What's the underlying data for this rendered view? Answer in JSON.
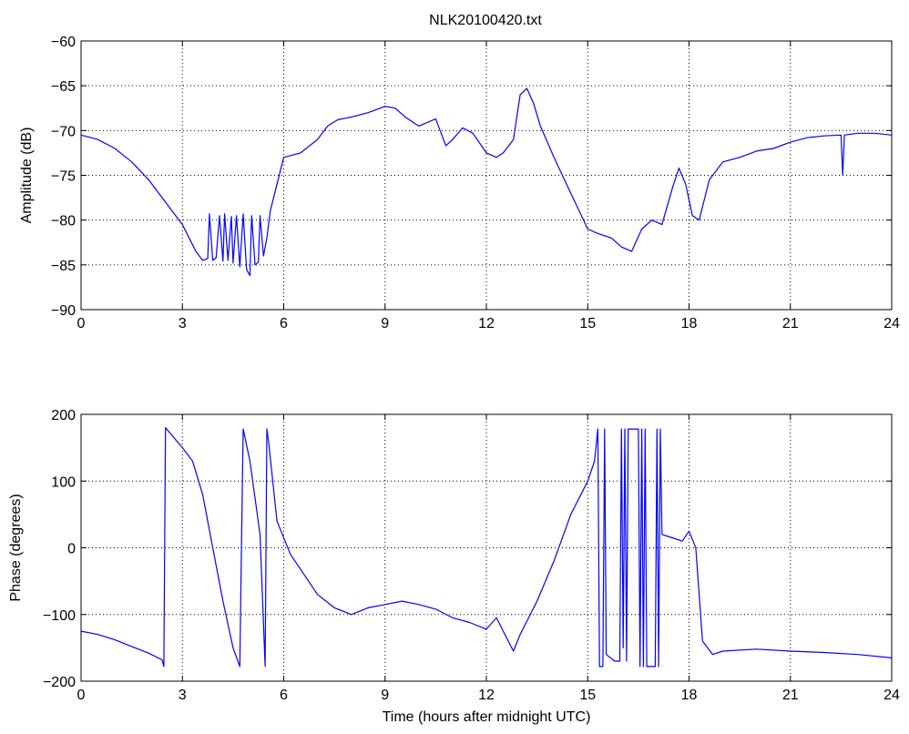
{
  "title": "NLK20100420.txt",
  "style": {
    "line_color": "#0000ff",
    "axis_color": "#000000",
    "grid_color": "#000000",
    "background": "#ffffff"
  },
  "chart_data": [
    {
      "type": "line",
      "title": "NLK20100420.txt",
      "xlabel": "",
      "ylabel": "Amplitude (dB)",
      "xlim": [
        0,
        24
      ],
      "ylim": [
        -90,
        -60
      ],
      "xticks": [
        0,
        3,
        6,
        9,
        12,
        15,
        18,
        21,
        24
      ],
      "yticks": [
        -90,
        -85,
        -80,
        -75,
        -70,
        -65,
        -60
      ],
      "grid": true,
      "series": [
        {
          "x": [
            0,
            0.5,
            1,
            1.5,
            2,
            2.5,
            3,
            3.2,
            3.4,
            3.6,
            3.75,
            3.8,
            3.9,
            4.0,
            4.1,
            4.2,
            4.25,
            4.35,
            4.45,
            4.5,
            4.6,
            4.7,
            4.8,
            4.9,
            5.0,
            5.05,
            5.15,
            5.25,
            5.3,
            5.4,
            5.5,
            5.6,
            5.8,
            6.0,
            6.5,
            7,
            7.3,
            7.6,
            8,
            8.5,
            9,
            9.3,
            9.6,
            10,
            10.5,
            10.8,
            11,
            11.3,
            11.6,
            12,
            12.3,
            12.5,
            12.8,
            13.0,
            13.2,
            13.4,
            13.6,
            14,
            14.5,
            15,
            15.3,
            15.7,
            16,
            16.3,
            16.6,
            16.9,
            17.2,
            17.5,
            17.7,
            17.9,
            18.1,
            18.3,
            18.6,
            19,
            19.5,
            20,
            20.5,
            21,
            21.5,
            22,
            22.5,
            22.55,
            22.6,
            23,
            23.5,
            24
          ],
          "y": [
            -70.5,
            -71,
            -72,
            -73.5,
            -75.5,
            -78,
            -80.5,
            -82,
            -83.5,
            -84.5,
            -84.3,
            -79.3,
            -84.5,
            -84.2,
            -79.5,
            -84.6,
            -79.3,
            -84.5,
            -79.6,
            -84.8,
            -79.5,
            -85.2,
            -79.3,
            -85.5,
            -86.2,
            -79.5,
            -85,
            -84.7,
            -79.5,
            -84,
            -82,
            -79,
            -76,
            -73,
            -72.5,
            -71,
            -69.5,
            -68.8,
            -68.5,
            -68,
            -67.3,
            -67.5,
            -68.5,
            -69.5,
            -68.7,
            -71.7,
            -71,
            -69.7,
            -70.3,
            -72.5,
            -73,
            -72.5,
            -71,
            -66,
            -65.3,
            -67,
            -69.5,
            -73,
            -77,
            -81,
            -81.5,
            -82,
            -83,
            -83.5,
            -81,
            -80,
            -80.5,
            -76.5,
            -74.2,
            -76,
            -79.5,
            -80,
            -75.5,
            -73.5,
            -73,
            -72.3,
            -72,
            -71.3,
            -70.8,
            -70.6,
            -70.5,
            -75,
            -70.5,
            -70.3,
            -70.3,
            -70.5
          ]
        }
      ]
    },
    {
      "type": "line",
      "title": "",
      "xlabel": "Time (hours after midnight UTC)",
      "ylabel": "Phase (degrees)",
      "xlim": [
        0,
        24
      ],
      "ylim": [
        -200,
        200
      ],
      "xticks": [
        0,
        3,
        6,
        9,
        12,
        15,
        18,
        21,
        24
      ],
      "yticks": [
        -200,
        -100,
        0,
        100,
        200
      ],
      "grid": true,
      "series": [
        {
          "x": [
            0,
            0.5,
            1,
            1.5,
            2,
            2.4,
            2.45,
            2.5,
            3,
            3.3,
            3.6,
            3.9,
            4.2,
            4.5,
            4.7,
            4.75,
            4.8,
            5.0,
            5.3,
            5.45,
            5.5,
            5.55,
            5.8,
            6.2,
            6.6,
            7,
            7.5,
            8,
            8.5,
            9,
            9.5,
            10,
            10.5,
            11,
            11.5,
            12,
            12.3,
            12.5,
            12.8,
            13,
            13.5,
            14,
            14.5,
            15,
            15.2,
            15.3,
            15.35,
            15.45,
            15.5,
            15.55,
            15.8,
            15.95,
            16.0,
            16.05,
            16.1,
            16.15,
            16.2,
            16.5,
            16.55,
            16.6,
            16.65,
            16.7,
            16.75,
            17.0,
            17.05,
            17.1,
            17.15,
            17.2,
            17.5,
            17.8,
            18.0,
            18.2,
            18.4,
            18.7,
            19,
            20,
            21,
            22,
            23,
            24
          ],
          "y": [
            -125,
            -130,
            -138,
            -148,
            -158,
            -168,
            -178,
            180,
            150,
            130,
            80,
            0,
            -80,
            -150,
            -178,
            0,
            178,
            130,
            20,
            -178,
            178,
            160,
            40,
            -10,
            -40,
            -70,
            -90,
            -100,
            -90,
            -85,
            -80,
            -85,
            -92,
            -105,
            -112,
            -122,
            -105,
            -125,
            -155,
            -130,
            -80,
            -20,
            50,
            100,
            130,
            178,
            -178,
            -178,
            178,
            -160,
            -170,
            -170,
            178,
            -150,
            178,
            -170,
            178,
            178,
            -178,
            178,
            -178,
            178,
            -178,
            -178,
            178,
            -178,
            178,
            20,
            15,
            10,
            25,
            0,
            -140,
            -160,
            -155,
            -152,
            -155,
            -157,
            -160,
            -165
          ]
        }
      ]
    }
  ]
}
